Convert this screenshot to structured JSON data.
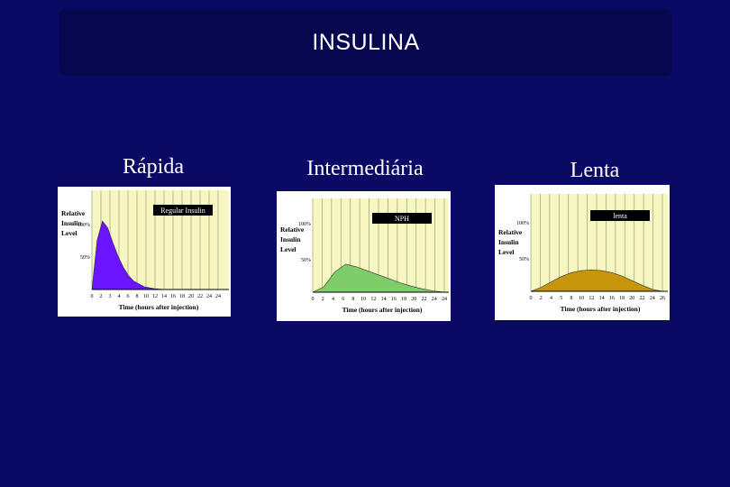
{
  "slide": {
    "title": "INSULINA",
    "labels": [
      "Rápida",
      "Intermediária",
      "Lenta"
    ]
  },
  "chart_data": [
    {
      "type": "area",
      "series_label": "Regular Insulin",
      "ylabel": "Relative Insulin Level",
      "xlabel": "Time (hours after injection)",
      "y_ticks": [
        "100%",
        "50%"
      ],
      "x_ticks": [
        "0",
        "2",
        "3",
        "4",
        "6",
        "8",
        "10",
        "12",
        "14",
        "16",
        "18",
        "20",
        "22",
        "24",
        "24"
      ],
      "x": [
        0,
        1,
        2,
        3,
        4,
        5,
        6,
        7,
        8,
        10,
        12,
        14
      ],
      "y": [
        0,
        72,
        100,
        90,
        68,
        48,
        32,
        20,
        12,
        4,
        1,
        0
      ],
      "color": "#6a14ff"
    },
    {
      "type": "area",
      "series_label": "NPH",
      "ylabel": "Relative Insulin Level",
      "xlabel": "Time (hours after injection)",
      "y_ticks": [
        "100%",
        "50%"
      ],
      "x_ticks": [
        "0",
        "2",
        "4",
        "6",
        "8",
        "10",
        "12",
        "14",
        "16",
        "18",
        "20",
        "22",
        "24",
        "24"
      ],
      "x": [
        0,
        2,
        4,
        6,
        8,
        10,
        12,
        14,
        16,
        18,
        20,
        22,
        24
      ],
      "y": [
        0,
        8,
        30,
        42,
        38,
        32,
        26,
        20,
        14,
        9,
        5,
        2,
        0
      ],
      "color": "#7fcc6a"
    },
    {
      "type": "area",
      "series_label": "lenta",
      "ylabel": "Relative Insulin Level",
      "xlabel": "Time (hours after injection)",
      "y_ticks": [
        "100%",
        "50%"
      ],
      "x_ticks": [
        "0",
        "2",
        "4",
        "5",
        "8",
        "10",
        "12",
        "14",
        "16",
        "18",
        "20",
        "22",
        "24",
        "26"
      ],
      "x": [
        0,
        2,
        4,
        6,
        8,
        10,
        12,
        14,
        16,
        18,
        20,
        22,
        24,
        26
      ],
      "y": [
        0,
        6,
        14,
        22,
        28,
        31,
        32,
        31,
        28,
        23,
        16,
        9,
        3,
        0
      ],
      "color": "#c8960a"
    }
  ]
}
